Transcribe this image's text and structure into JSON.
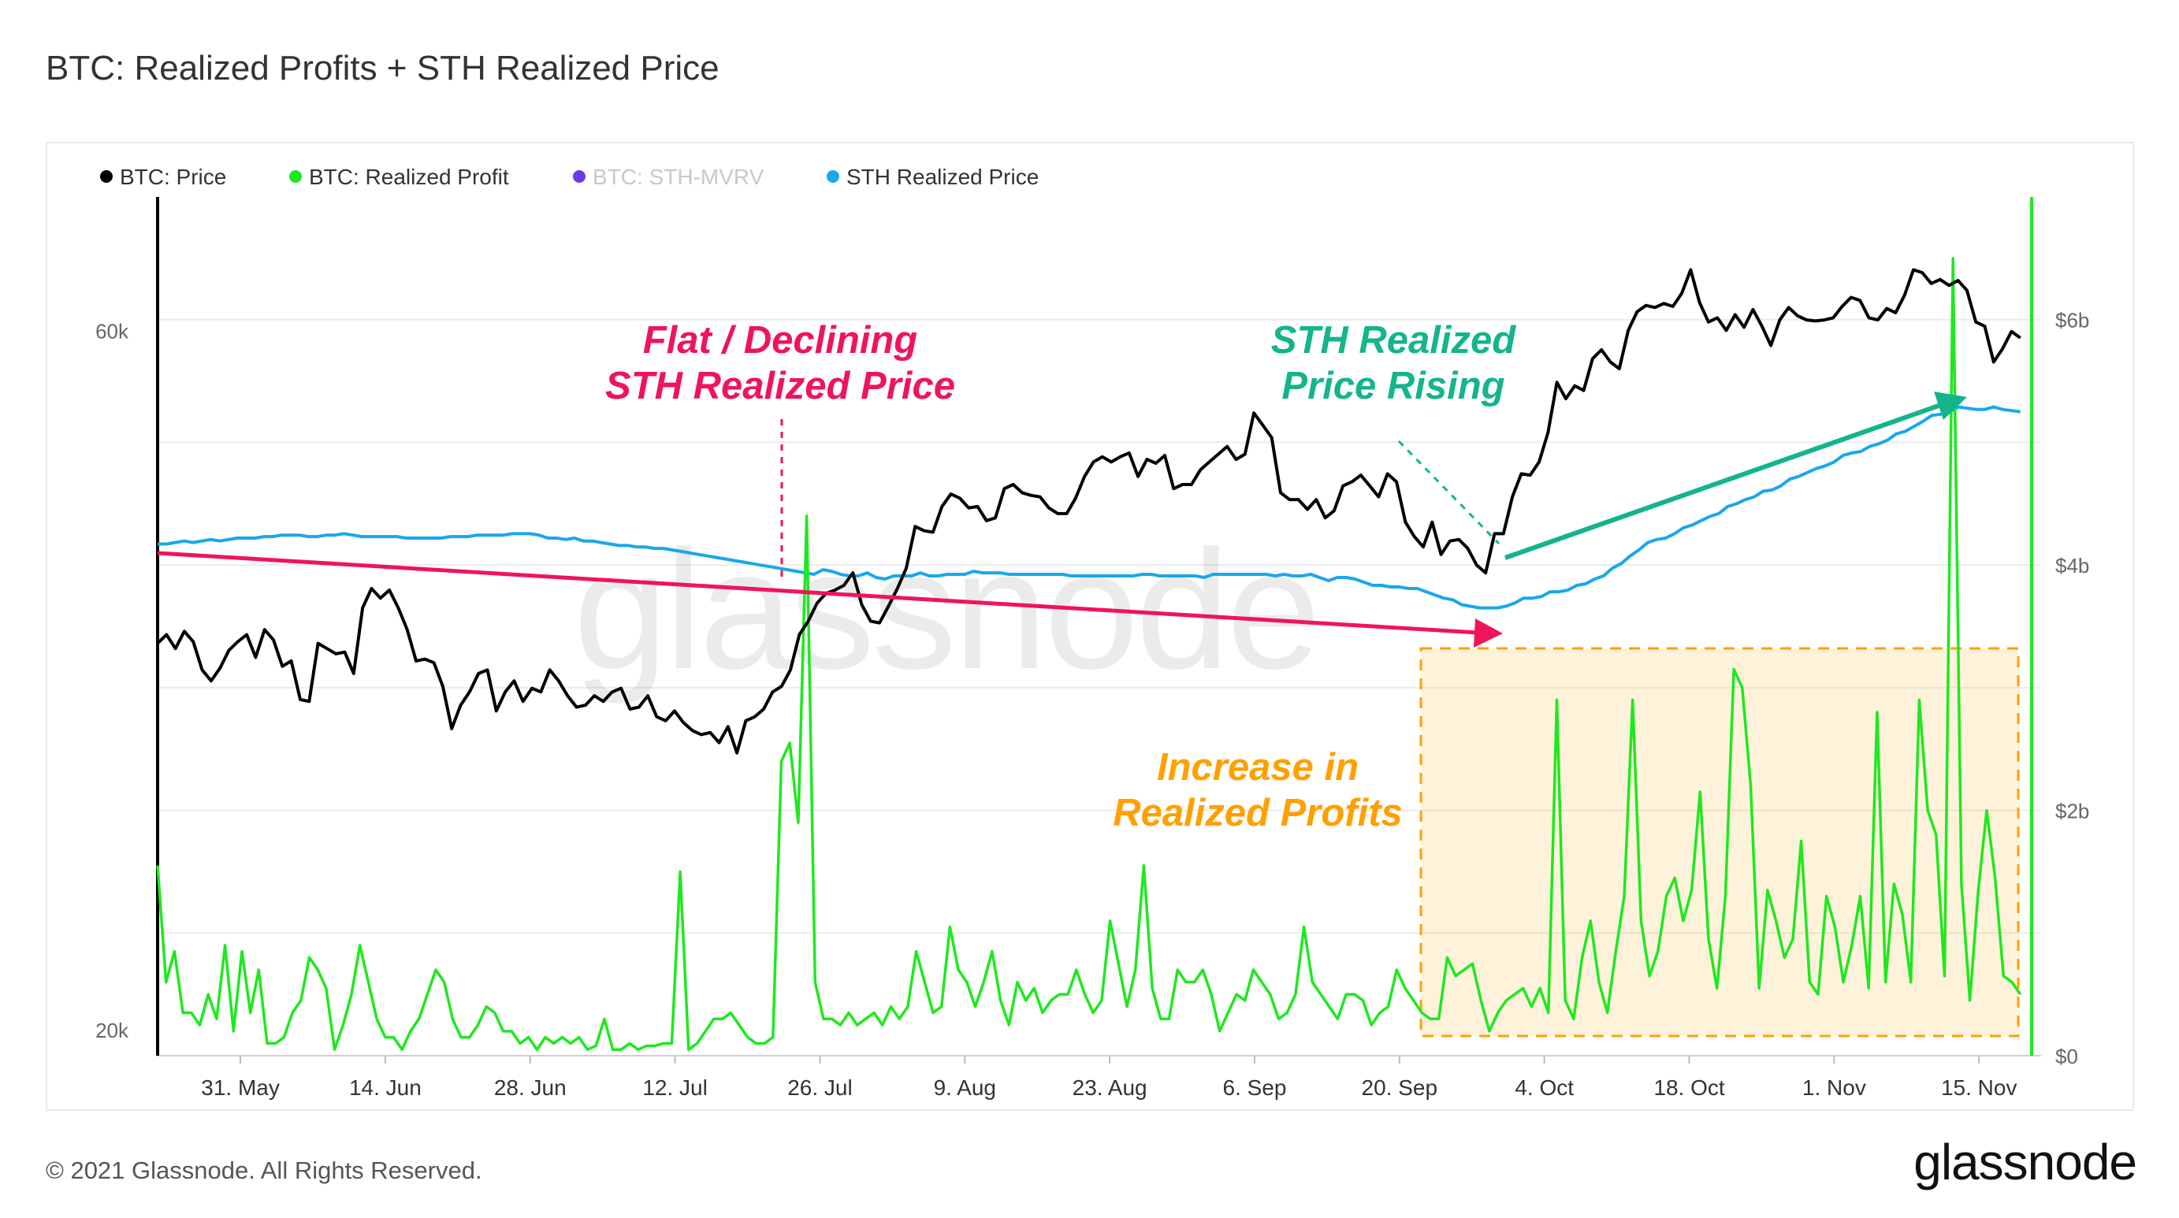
{
  "page": {
    "title": "BTC: Realized Profits + STH Realized Price",
    "footer": "© 2021 Glassnode. All Rights Reserved.",
    "brand": "glassnode",
    "watermark": "glassnode"
  },
  "chart_data": {
    "type": "line",
    "title": "BTC: Realized Profits + STH Realized Price",
    "legend": {
      "placement": "top-left",
      "entries": [
        {
          "label": "BTC: Price",
          "color": "#000000",
          "disabled": false
        },
        {
          "label": "BTC: Realized Profit",
          "color": "#1ee81e",
          "disabled": false
        },
        {
          "label": "BTC: STH-MVRV",
          "color": "#6a3de8",
          "disabled": true
        },
        {
          "label": "STH Realized Price",
          "color": "#1aa7ec",
          "disabled": false
        }
      ]
    },
    "x_ticks": [
      "31. May",
      "14. Jun",
      "28. Jun",
      "12. Jul",
      "26. Jul",
      "9. Aug",
      "23. Aug",
      "6. Sep",
      "20. Sep",
      "4. Oct",
      "18. Oct",
      "1. Nov",
      "15. Nov"
    ],
    "x_range_days": [
      -8,
      174
    ],
    "left_axis": {
      "scale": "log",
      "ticks": [
        "60k",
        "20k"
      ],
      "ylim": [
        19200,
        74000
      ]
    },
    "right_axis": {
      "ticks": [
        "$6b",
        "$4b",
        "$2b",
        "$0"
      ],
      "ylim": [
        0,
        7000000000
      ]
    },
    "series": [
      {
        "name": "BTC: Price",
        "axis": "left",
        "color": "#000000",
        "values": [
          36700,
          37200,
          36400,
          37400,
          36800,
          35200,
          34600,
          35300,
          36300,
          36800,
          37200,
          35900,
          37500,
          36900,
          35400,
          35700,
          33600,
          33500,
          36700,
          36400,
          36100,
          36200,
          35000,
          38800,
          40000,
          39400,
          39900,
          38800,
          37500,
          35700,
          35800,
          35600,
          34300,
          32100,
          33300,
          34000,
          35000,
          35200,
          33000,
          34000,
          34600,
          33500,
          34200,
          34000,
          35200,
          34600,
          33800,
          33200,
          33300,
          33800,
          33500,
          34000,
          34200,
          33100,
          33200,
          33800,
          32700,
          32500,
          33000,
          32400,
          32000,
          31800,
          31900,
          31400,
          32200,
          30900,
          32500,
          32700,
          33100,
          34000,
          34300,
          35200,
          37200,
          38000,
          39100,
          39700,
          39900,
          40200,
          41000,
          39000,
          38000,
          37900,
          38900,
          40000,
          41300,
          44100,
          43800,
          43700,
          45500,
          46400,
          46100,
          45400,
          45500,
          44500,
          44700,
          46800,
          47100,
          46500,
          46300,
          46200,
          45400,
          45000,
          45000,
          46100,
          47700,
          48800,
          49200,
          48800,
          49200,
          49500,
          47700,
          49000,
          48700,
          49300,
          46800,
          47100,
          47100,
          48200,
          48800,
          49400,
          50000,
          49000,
          49400,
          52700,
          51700,
          50700,
          46500,
          46000,
          46000,
          45300,
          46000,
          44700,
          45200,
          47000,
          47300,
          47800,
          47000,
          46200,
          47900,
          47300,
          44400,
          43400,
          42700,
          44400,
          42200,
          43100,
          43200,
          42600,
          41500,
          41000,
          43600,
          43600,
          46200,
          47900,
          47800,
          48800,
          51100,
          55300,
          53900,
          55000,
          54600,
          57400,
          58200,
          57100,
          56500,
          60000,
          61800,
          62400,
          62200,
          62600,
          62300,
          63600,
          66000,
          62700,
          60800,
          61200,
          60000,
          61500,
          60300,
          62000,
          60400,
          58600,
          61000,
          62200,
          61400,
          61000,
          60900,
          61000,
          61200,
          62300,
          63200,
          62900,
          61200,
          61000,
          62100,
          61700,
          63400,
          66000,
          65700,
          64600,
          65000,
          64400,
          64900,
          63900,
          60800,
          60400,
          57100,
          58300,
          59900,
          59300
        ]
      },
      {
        "name": "BTC: Realized Profit",
        "axis": "right",
        "color": "#1ee81e",
        "values": [
          1.55,
          0.6,
          0.85,
          0.35,
          0.35,
          0.25,
          0.5,
          0.3,
          0.9,
          0.2,
          0.85,
          0.35,
          0.7,
          0.1,
          0.1,
          0.15,
          0.35,
          0.45,
          0.8,
          0.7,
          0.55,
          0.05,
          0.25,
          0.5,
          0.9,
          0.6,
          0.3,
          0.15,
          0.15,
          0.05,
          0.2,
          0.3,
          0.5,
          0.7,
          0.6,
          0.3,
          0.15,
          0.15,
          0.25,
          0.4,
          0.35,
          0.2,
          0.2,
          0.1,
          0.15,
          0.05,
          0.15,
          0.1,
          0.15,
          0.1,
          0.15,
          0.05,
          0.08,
          0.3,
          0.05,
          0.05,
          0.1,
          0.05,
          0.08,
          0.08,
          0.1,
          0.1,
          1.5,
          0.05,
          0.1,
          0.2,
          0.3,
          0.3,
          0.35,
          0.25,
          0.15,
          0.1,
          0.1,
          0.15,
          2.4,
          2.55,
          1.9,
          4.4,
          0.6,
          0.3,
          0.3,
          0.25,
          0.35,
          0.25,
          0.3,
          0.35,
          0.25,
          0.4,
          0.3,
          0.4,
          0.85,
          0.6,
          0.35,
          0.4,
          1.05,
          0.7,
          0.6,
          0.4,
          0.6,
          0.85,
          0.45,
          0.25,
          0.6,
          0.45,
          0.55,
          0.35,
          0.45,
          0.5,
          0.5,
          0.7,
          0.5,
          0.35,
          0.45,
          1.1,
          0.75,
          0.4,
          0.7,
          1.55,
          0.55,
          0.3,
          0.3,
          0.7,
          0.6,
          0.6,
          0.7,
          0.5,
          0.2,
          0.35,
          0.5,
          0.45,
          0.7,
          0.6,
          0.5,
          0.3,
          0.35,
          0.5,
          1.05,
          0.6,
          0.5,
          0.4,
          0.3,
          0.5,
          0.5,
          0.45,
          0.25,
          0.35,
          0.4,
          0.7,
          0.55,
          0.45,
          0.35,
          0.3,
          0.3,
          0.8,
          0.65,
          0.7,
          0.75,
          0.45,
          0.2,
          0.35,
          0.45,
          0.5,
          0.55,
          0.4,
          0.55,
          0.35,
          2.9,
          0.45,
          0.3,
          0.8,
          1.1,
          0.6,
          0.35,
          0.85,
          1.3,
          2.9,
          1.1,
          0.65,
          0.85,
          1.3,
          1.45,
          1.1,
          1.35,
          2.15,
          0.95,
          0.55,
          1.3,
          3.15,
          3.0,
          2.2,
          0.55,
          1.35,
          1.1,
          0.8,
          0.95,
          1.75,
          0.6,
          0.5,
          1.3,
          1.05,
          0.6,
          0.9,
          1.3,
          0.55,
          2.8,
          0.6,
          1.4,
          1.15,
          0.6,
          2.9,
          2.0,
          1.8,
          0.65,
          6.5,
          1.4,
          0.45,
          1.35,
          2.0,
          1.45,
          0.65,
          0.6,
          0.5
        ]
      },
      {
        "name": "STH Realized Price",
        "axis": "left",
        "color": "#1aa7ec",
        "values": [
          42900,
          42900,
          43000,
          43100,
          43000,
          43100,
          43200,
          43100,
          43200,
          43300,
          43300,
          43300,
          43400,
          43400,
          43500,
          43500,
          43500,
          43400,
          43400,
          43500,
          43500,
          43600,
          43500,
          43400,
          43400,
          43400,
          43400,
          43400,
          43300,
          43300,
          43300,
          43300,
          43300,
          43400,
          43400,
          43400,
          43500,
          43500,
          43500,
          43500,
          43600,
          43600,
          43600,
          43500,
          43300,
          43300,
          43200,
          43300,
          43100,
          43100,
          43000,
          42900,
          42800,
          42800,
          42700,
          42700,
          42600,
          42600,
          42500,
          42400,
          42300,
          42200,
          42100,
          42000,
          41900,
          41800,
          41700,
          41600,
          41500,
          41400,
          41300,
          41200,
          41100,
          41000,
          40900,
          41200,
          41100,
          40900,
          40800,
          40800,
          41000,
          40700,
          40600,
          40800,
          40800,
          40800,
          41000,
          40800,
          40800,
          40900,
          40900,
          40900,
          41100,
          41000,
          41000,
          41000,
          40900,
          40900,
          40900,
          40900,
          40900,
          40900,
          40900,
          40800,
          40800,
          40800,
          40800,
          40800,
          40800,
          40800,
          40800,
          40900,
          40900,
          40800,
          40800,
          40800,
          40800,
          40800,
          40700,
          40900,
          40900,
          40900,
          40900,
          40900,
          40900,
          40900,
          40800,
          40900,
          40800,
          40800,
          40900,
          40700,
          40500,
          40700,
          40700,
          40600,
          40400,
          40200,
          40200,
          40100,
          40100,
          40000,
          40000,
          39800,
          39600,
          39400,
          39300,
          39000,
          38900,
          38800,
          38800,
          38800,
          38900,
          39100,
          39400,
          39400,
          39500,
          39800,
          39800,
          39900,
          40200,
          40300,
          40600,
          40800,
          41300,
          41600,
          42100,
          42500,
          43000,
          43200,
          43300,
          43600,
          44000,
          44200,
          44500,
          44800,
          45000,
          45500,
          45700,
          46000,
          46200,
          46600,
          46700,
          47000,
          47500,
          47700,
          48000,
          48300,
          48500,
          48800,
          49300,
          49500,
          49600,
          50000,
          50200,
          50500,
          51000,
          51200,
          51600,
          52000,
          52500,
          52600,
          52800,
          53200,
          53100,
          53000,
          53000,
          53200,
          53000,
          52900,
          52800
        ]
      }
    ],
    "annotations": [
      {
        "text_lines": [
          "Flat / Declining",
          "STH Realized Price"
        ],
        "color": "#f0145a"
      },
      {
        "text_lines": [
          "STH Realized",
          "Price Rising"
        ],
        "color": "#14b48c"
      },
      {
        "text_lines": [
          "Increase in",
          "Realized Profits"
        ],
        "color": "#ffa000"
      }
    ]
  }
}
